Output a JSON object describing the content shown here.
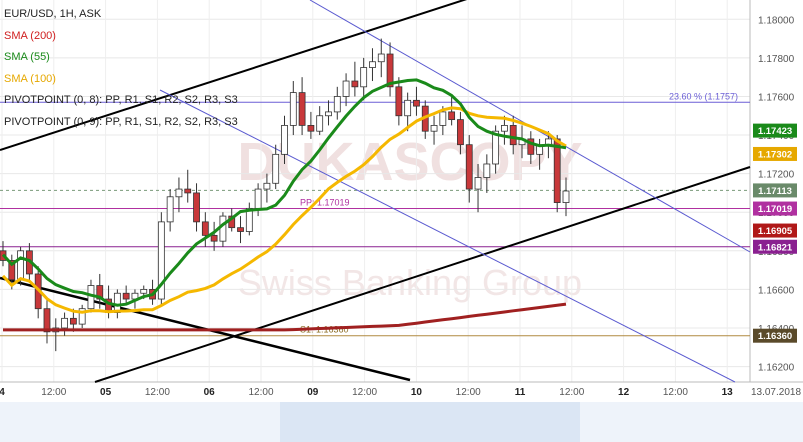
{
  "chart_data": {
    "type": "candlestick",
    "symbol": "EUR/USD, 1H, ASK",
    "watermark": "DUKASCOPY",
    "watermark_sub": "Swiss Banking Group",
    "y_axis": {
      "range": [
        1.1612,
        1.181
      ],
      "ticks": [
        "1.18000",
        "1.17800",
        "1.17600",
        "1.17400",
        "1.17200",
        "1.17000",
        "1.16800",
        "1.16600",
        "1.16400",
        "1.16200"
      ]
    },
    "x_axis": {
      "ticks": [
        "4",
        "12:00",
        "05",
        "12:00",
        "06",
        "12:00",
        "09",
        "12:00",
        "10",
        "12:00",
        "11",
        "12:00",
        "12",
        "12:00",
        "13",
        "13.07.2018"
      ]
    },
    "legend": [
      {
        "text": "EUR/USD, 1H, ASK",
        "color": "#222222"
      },
      {
        "text": "SMA (200)",
        "color": "#d02020"
      },
      {
        "text": "SMA (55)",
        "color": "#1a8a1a"
      },
      {
        "text": "SMA (100)",
        "color": "#e6a800"
      },
      {
        "text": "PIVOTPOINT (0, 8): PP, R1, S1, R2, S2, R3, S3",
        "color": "#222222"
      },
      {
        "text": "PIVOTPOINT (0, 9): PP, R1, S1, R2, S2, R3, S3",
        "color": "#222222"
      }
    ],
    "levels": [
      {
        "name": "23.60 % (1.1757)",
        "value": 1.1757,
        "color": "#6b5fd6"
      },
      {
        "name": "PP: 1.17019",
        "value": 1.17019,
        "color": "#b030a0"
      },
      {
        "name": "1.16821",
        "value": 1.16821,
        "color": "#8a2090"
      },
      {
        "name": "S1: 1.16360",
        "value": 1.1636,
        "color": "#b08a40"
      }
    ],
    "price_labels": [
      {
        "text": "1.17423",
        "value": 1.17423,
        "color": "#1a8a1a"
      },
      {
        "text": "1.17302",
        "value": 1.17302,
        "color": "#e6a800"
      },
      {
        "text": "1.17113",
        "value": 1.17113,
        "color": "#6a8a6a"
      },
      {
        "text": "1.17019",
        "value": 1.17019,
        "color": "#b030a0"
      },
      {
        "text": "1.16905",
        "value": 1.16905,
        "color": "#b01818"
      },
      {
        "text": "1.16821",
        "value": 1.16821,
        "color": "#8a2090"
      },
      {
        "text": "1.16360",
        "value": 1.1636,
        "color": "#5a4a2a"
      }
    ],
    "candles": [
      [
        1.168,
        1.1685,
        1.1672,
        1.1675
      ],
      [
        1.1675,
        1.1678,
        1.166,
        1.1665
      ],
      [
        1.1665,
        1.1682,
        1.1662,
        1.168
      ],
      [
        1.168,
        1.1684,
        1.1665,
        1.1668
      ],
      [
        1.1668,
        1.1672,
        1.1645,
        1.165
      ],
      [
        1.165,
        1.1655,
        1.1632,
        1.1638
      ],
      [
        1.1638,
        1.1645,
        1.1628,
        1.164
      ],
      [
        1.164,
        1.1648,
        1.1636,
        1.1645
      ],
      [
        1.1645,
        1.165,
        1.1638,
        1.1642
      ],
      [
        1.1642,
        1.1652,
        1.164,
        1.165
      ],
      [
        1.165,
        1.1665,
        1.1648,
        1.1662
      ],
      [
        1.1662,
        1.1668,
        1.165,
        1.1655
      ],
      [
        1.1655,
        1.1662,
        1.1645,
        1.1648
      ],
      [
        1.1648,
        1.166,
        1.1645,
        1.1658
      ],
      [
        1.1658,
        1.1662,
        1.1652,
        1.1655
      ],
      [
        1.1655,
        1.166,
        1.165,
        1.1658
      ],
      [
        1.1658,
        1.1662,
        1.1655,
        1.166
      ],
      [
        1.166,
        1.1665,
        1.1652,
        1.1655
      ],
      [
        1.1655,
        1.17,
        1.1652,
        1.1695
      ],
      [
        1.1695,
        1.1712,
        1.169,
        1.1708
      ],
      [
        1.1708,
        1.1718,
        1.17,
        1.1712
      ],
      [
        1.1712,
        1.1722,
        1.1705,
        1.171
      ],
      [
        1.171,
        1.1715,
        1.169,
        1.1695
      ],
      [
        1.1695,
        1.17,
        1.1682,
        1.1688
      ],
      [
        1.1688,
        1.1695,
        1.168,
        1.1685
      ],
      [
        1.1685,
        1.17,
        1.1682,
        1.1698
      ],
      [
        1.1698,
        1.1702,
        1.169,
        1.1692
      ],
      [
        1.1692,
        1.1698,
        1.1684,
        1.169
      ],
      [
        1.169,
        1.1705,
        1.1688,
        1.1702
      ],
      [
        1.1702,
        1.1715,
        1.1698,
        1.1712
      ],
      [
        1.1712,
        1.172,
        1.1705,
        1.1715
      ],
      [
        1.1715,
        1.1735,
        1.1712,
        1.173
      ],
      [
        1.173,
        1.175,
        1.1725,
        1.1745
      ],
      [
        1.1745,
        1.1768,
        1.174,
        1.1762
      ],
      [
        1.1762,
        1.177,
        1.174,
        1.1745
      ],
      [
        1.1745,
        1.1752,
        1.1738,
        1.1742
      ],
      [
        1.1742,
        1.1755,
        1.174,
        1.175
      ],
      [
        1.175,
        1.1758,
        1.1745,
        1.1752
      ],
      [
        1.1752,
        1.1765,
        1.1748,
        1.176
      ],
      [
        1.176,
        1.1772,
        1.1755,
        1.1768
      ],
      [
        1.1768,
        1.1778,
        1.176,
        1.1765
      ],
      [
        1.1765,
        1.178,
        1.1758,
        1.1775
      ],
      [
        1.1775,
        1.1785,
        1.1768,
        1.1778
      ],
      [
        1.1778,
        1.179,
        1.177,
        1.1782
      ],
      [
        1.1782,
        1.1788,
        1.176,
        1.1765
      ],
      [
        1.1765,
        1.177,
        1.1745,
        1.175
      ],
      [
        1.175,
        1.1762,
        1.1742,
        1.1758
      ],
      [
        1.1758,
        1.1765,
        1.175,
        1.1755
      ],
      [
        1.1755,
        1.1758,
        1.1738,
        1.1742
      ],
      [
        1.1742,
        1.175,
        1.1735,
        1.1745
      ],
      [
        1.1745,
        1.1755,
        1.174,
        1.1752
      ],
      [
        1.1752,
        1.176,
        1.1745,
        1.1748
      ],
      [
        1.1748,
        1.1752,
        1.173,
        1.1735
      ],
      [
        1.1735,
        1.174,
        1.1705,
        1.1712
      ],
      [
        1.1712,
        1.1725,
        1.17,
        1.1718
      ],
      [
        1.1718,
        1.173,
        1.171,
        1.1725
      ],
      [
        1.1725,
        1.1745,
        1.172,
        1.1742
      ],
      [
        1.1742,
        1.175,
        1.1735,
        1.1745
      ],
      [
        1.1745,
        1.175,
        1.173,
        1.1735
      ],
      [
        1.1735,
        1.1745,
        1.1728,
        1.1738
      ],
      [
        1.1738,
        1.1742,
        1.1725,
        1.173
      ],
      [
        1.173,
        1.1738,
        1.1722,
        1.1735
      ],
      [
        1.1735,
        1.1742,
        1.1728,
        1.1738
      ],
      [
        1.1738,
        1.174,
        1.17,
        1.1705
      ],
      [
        1.1705,
        1.1718,
        1.1698,
        1.1711
      ]
    ]
  }
}
